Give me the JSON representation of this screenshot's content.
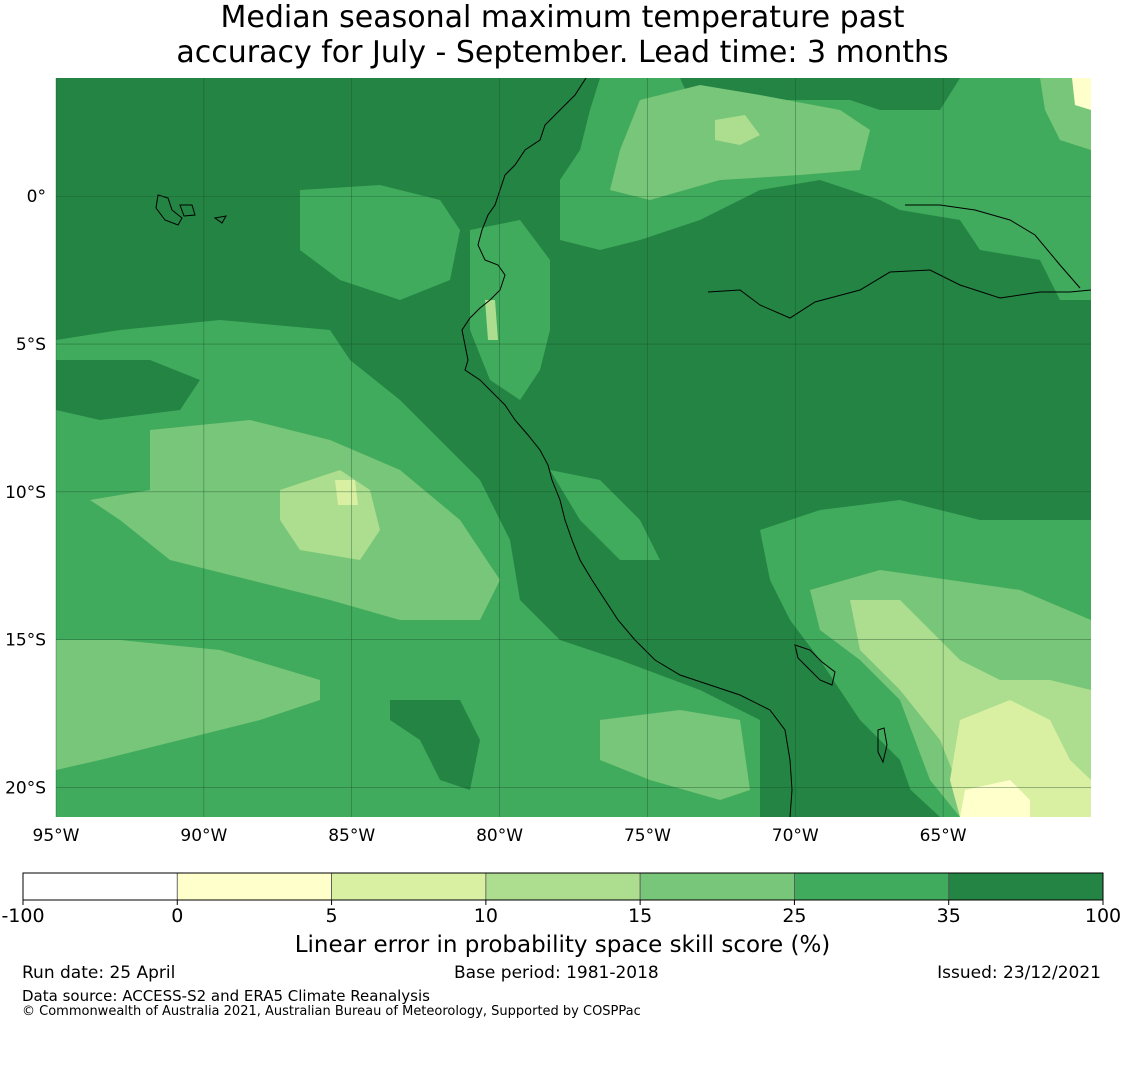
{
  "title": {
    "line1": "Median seasonal maximum temperature past",
    "line2": "accuracy for July - September. Lead time: 3 months"
  },
  "map": {
    "lon_range": [
      -95,
      -60
    ],
    "lat_range": [
      -21,
      4
    ],
    "lon_ticks": [
      {
        "value": -95,
        "label": "95°W"
      },
      {
        "value": -90,
        "label": "90°W"
      },
      {
        "value": -85,
        "label": "85°W"
      },
      {
        "value": -80,
        "label": "80°W"
      },
      {
        "value": -75,
        "label": "75°W"
      },
      {
        "value": -70,
        "label": "70°W"
      },
      {
        "value": -65,
        "label": "65°W"
      }
    ],
    "lat_ticks": [
      {
        "value": 0,
        "label": "0°"
      },
      {
        "value": -5,
        "label": "5°S"
      },
      {
        "value": -10,
        "label": "10°S"
      },
      {
        "value": -15,
        "label": "15°S"
      },
      {
        "value": -20,
        "label": "20°S"
      }
    ],
    "colors": {
      "cat_35_100": "#238443",
      "cat_25_35": "#41ab5d",
      "cat_15_25": "#78c679",
      "cat_10_15": "#addd8e",
      "cat_5_10": "#d9f0a3",
      "cat_0_5": "#ffffcc",
      "gridline": "#1a4d2a",
      "coast": "#000000"
    }
  },
  "colorbar": {
    "boundaries": [
      "-100",
      "0",
      "5",
      "10",
      "15",
      "25",
      "35",
      "100"
    ],
    "colors": [
      "#ffffff",
      "#ffffcc",
      "#d9f0a3",
      "#addd8e",
      "#78c679",
      "#41ab5d",
      "#238443"
    ],
    "label": "Linear error in probability space skill score (%)"
  },
  "footer": {
    "run_date": "Run date: 25 April",
    "base_period": "Base period: 1981-2018",
    "issued": "Issued: 23/12/2021",
    "data_source": "Data source: ACCESS-S2 and ERA5 Climate Reanalysis",
    "copyright": "© Commonwealth of Australia 2021, Australian Bureau of Meteorology, Supported by COSPPac"
  }
}
